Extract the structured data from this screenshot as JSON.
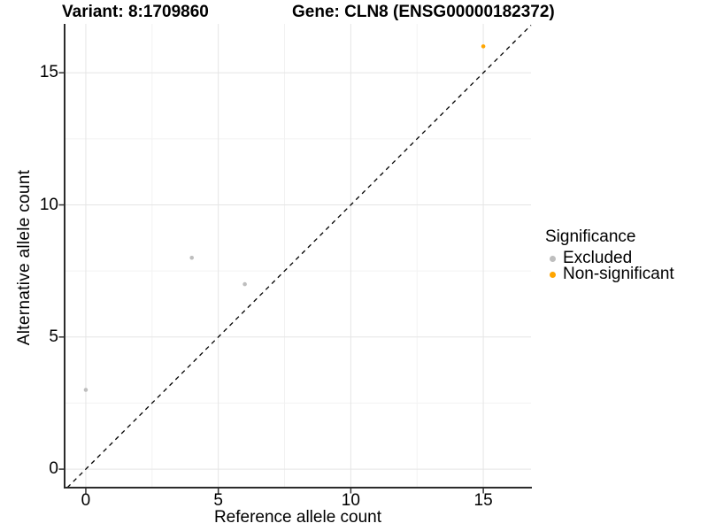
{
  "chart_data": {
    "type": "scatter",
    "title": "Variant: 8:1709860",
    "title2": "Gene: CLN8 (ENSG00000182372)",
    "xlabel": "Reference allele count",
    "ylabel": "Alternative allele count",
    "xlim": [
      -0.8,
      16.8
    ],
    "ylim": [
      -0.7,
      16.85
    ],
    "x_ticks": [
      0,
      5,
      10,
      15
    ],
    "y_ticks": [
      0,
      5,
      10,
      15
    ],
    "x_minor_ticks": [
      2.5,
      7.5,
      12.5
    ],
    "y_minor_ticks": [
      2.5,
      7.5,
      12.5
    ],
    "grid": true,
    "identity_line": {
      "style": "dashed",
      "color": "#000000",
      "from": "y=x"
    },
    "series": [
      {
        "name": "Excluded",
        "color": "#BEBEBE",
        "points": [
          [
            0,
            3
          ],
          [
            4,
            8
          ],
          [
            6,
            7
          ]
        ]
      },
      {
        "name": "Non-significant",
        "color": "#FFA500",
        "points": [
          [
            15,
            16
          ]
        ]
      }
    ],
    "legend": {
      "title": "Significance",
      "position": "right"
    }
  },
  "colors": {
    "axis_line": "#2b2b2b",
    "tick_mark": "#333333",
    "grid_major": "#e5e5e5",
    "grid_minor": "#f2f2f2",
    "text": "#000000"
  }
}
